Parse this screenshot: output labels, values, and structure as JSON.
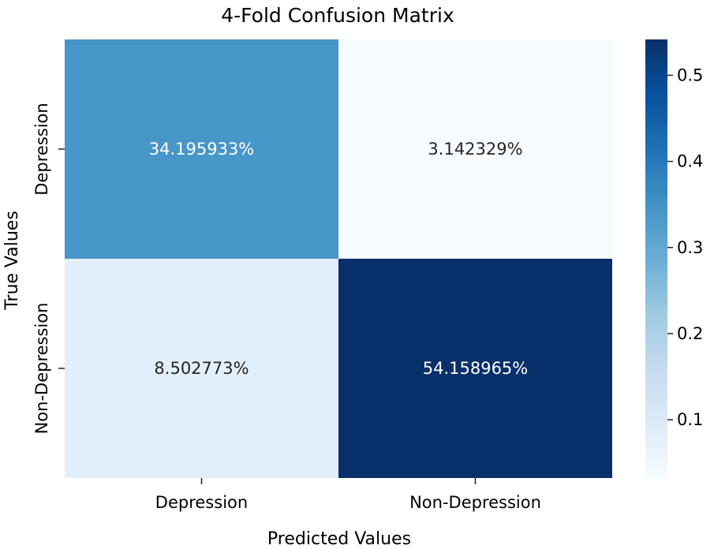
{
  "chart_data": {
    "type": "heatmap",
    "title": "4-Fold Confusion Matrix",
    "xlabel": "Predicted Values",
    "ylabel": "True Values",
    "x_categories": [
      "Depression",
      "Non-Depression"
    ],
    "y_categories": [
      "Depression",
      "Non-Depression"
    ],
    "values": [
      [
        0.34195933,
        0.03142329
      ],
      [
        0.08502773,
        0.54158965
      ]
    ],
    "cell_labels": [
      [
        "34.195933%",
        "3.142329%"
      ],
      [
        "8.502773%",
        "54.158965%"
      ]
    ],
    "colormap": "Blues",
    "colorbar": {
      "range": [
        0.0314,
        0.5416
      ],
      "ticks": [
        0.1,
        0.2,
        0.3,
        0.4,
        0.5
      ],
      "tick_labels": [
        "0.1",
        "0.2",
        "0.3",
        "0.4",
        "0.5"
      ]
    },
    "legend": "colorbar-right",
    "grid": false
  }
}
